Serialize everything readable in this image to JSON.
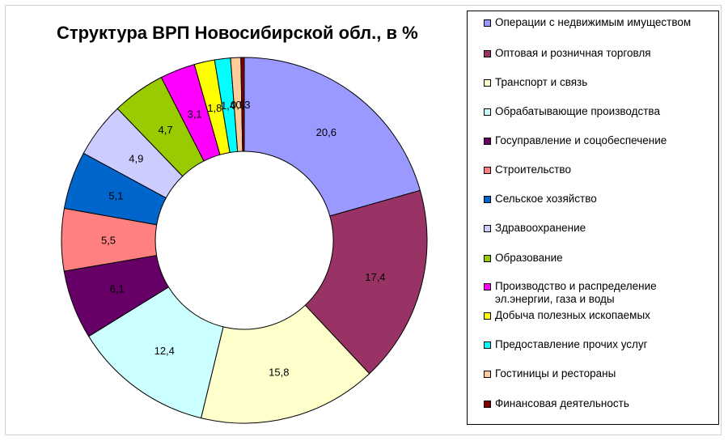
{
  "chart_data": {
    "type": "pie",
    "variant": "donut",
    "title": "Структура ВРП Новосибирской обл., в %",
    "legend_position": "right",
    "categories": [
      "Операции с недвижимым имуществом",
      "Оптовая и розничная торговля",
      "Транспорт и связь",
      "Обрабатывающие производства",
      "Госуправление и соцобеспечение",
      "Строительство",
      "Сельское хозяйство",
      "Здравоохранение",
      "Образование",
      "Производство и распределение эл.энергии, газа и воды",
      "Добыча полезных ископаемых",
      "Предоставление прочих услуг",
      "Гостиницы и рестораны",
      "Финансовая деятельность"
    ],
    "values": [
      20.6,
      17.4,
      15.8,
      12.4,
      6.1,
      5.5,
      5.1,
      4.9,
      4.7,
      3.1,
      1.8,
      1.4,
      0.9,
      0.3
    ],
    "value_labels": [
      "20,6",
      "17,4",
      "15,8",
      "12,4",
      "6,1",
      "5,5",
      "5,1",
      "4,9",
      "4,7",
      "3,1",
      "1,8",
      "1,4",
      "0,9",
      "0,3"
    ],
    "colors": [
      "#9999FF",
      "#993366",
      "#FFFFCC",
      "#CCFFFF",
      "#660066",
      "#FF8080",
      "#0066CC",
      "#CCCCFF",
      "#99CC00",
      "#FF00FF",
      "#FFFF00",
      "#00FFFF",
      "#FFCC99",
      "#800000"
    ]
  }
}
